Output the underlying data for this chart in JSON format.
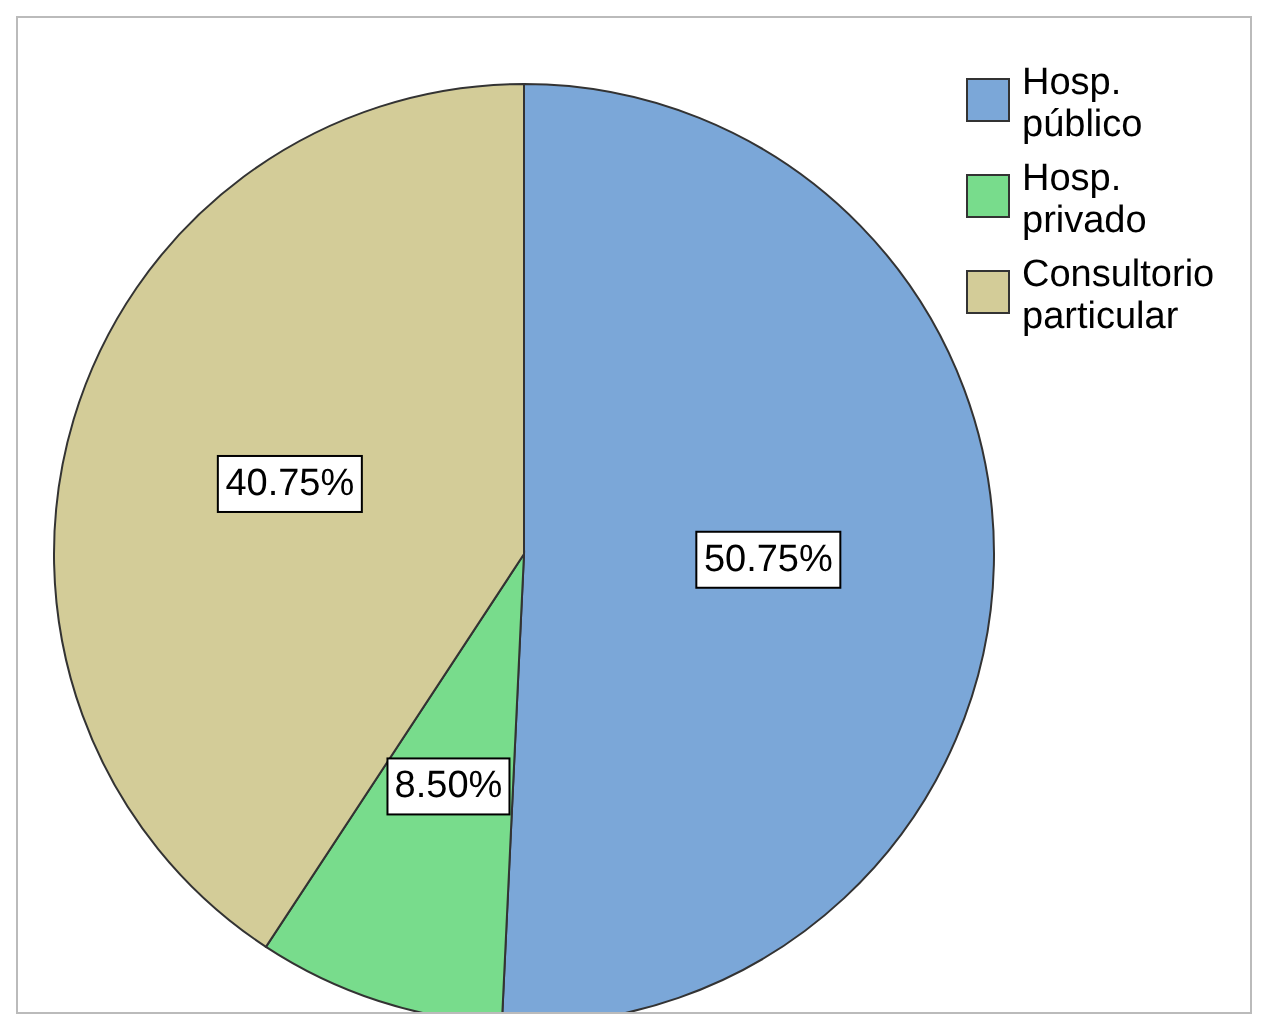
{
  "chart_data": {
    "type": "pie",
    "categories": [
      "Hosp. público",
      "Hosp. privado",
      "Consultorio particular"
    ],
    "values": [
      50.75,
      8.5,
      40.75
    ],
    "colors": [
      "#7ba7d8",
      "#78dc8c",
      "#d3cc98"
    ],
    "value_labels": [
      "50.75%",
      "8.50%",
      "40.75%"
    ],
    "legend": "top right"
  }
}
